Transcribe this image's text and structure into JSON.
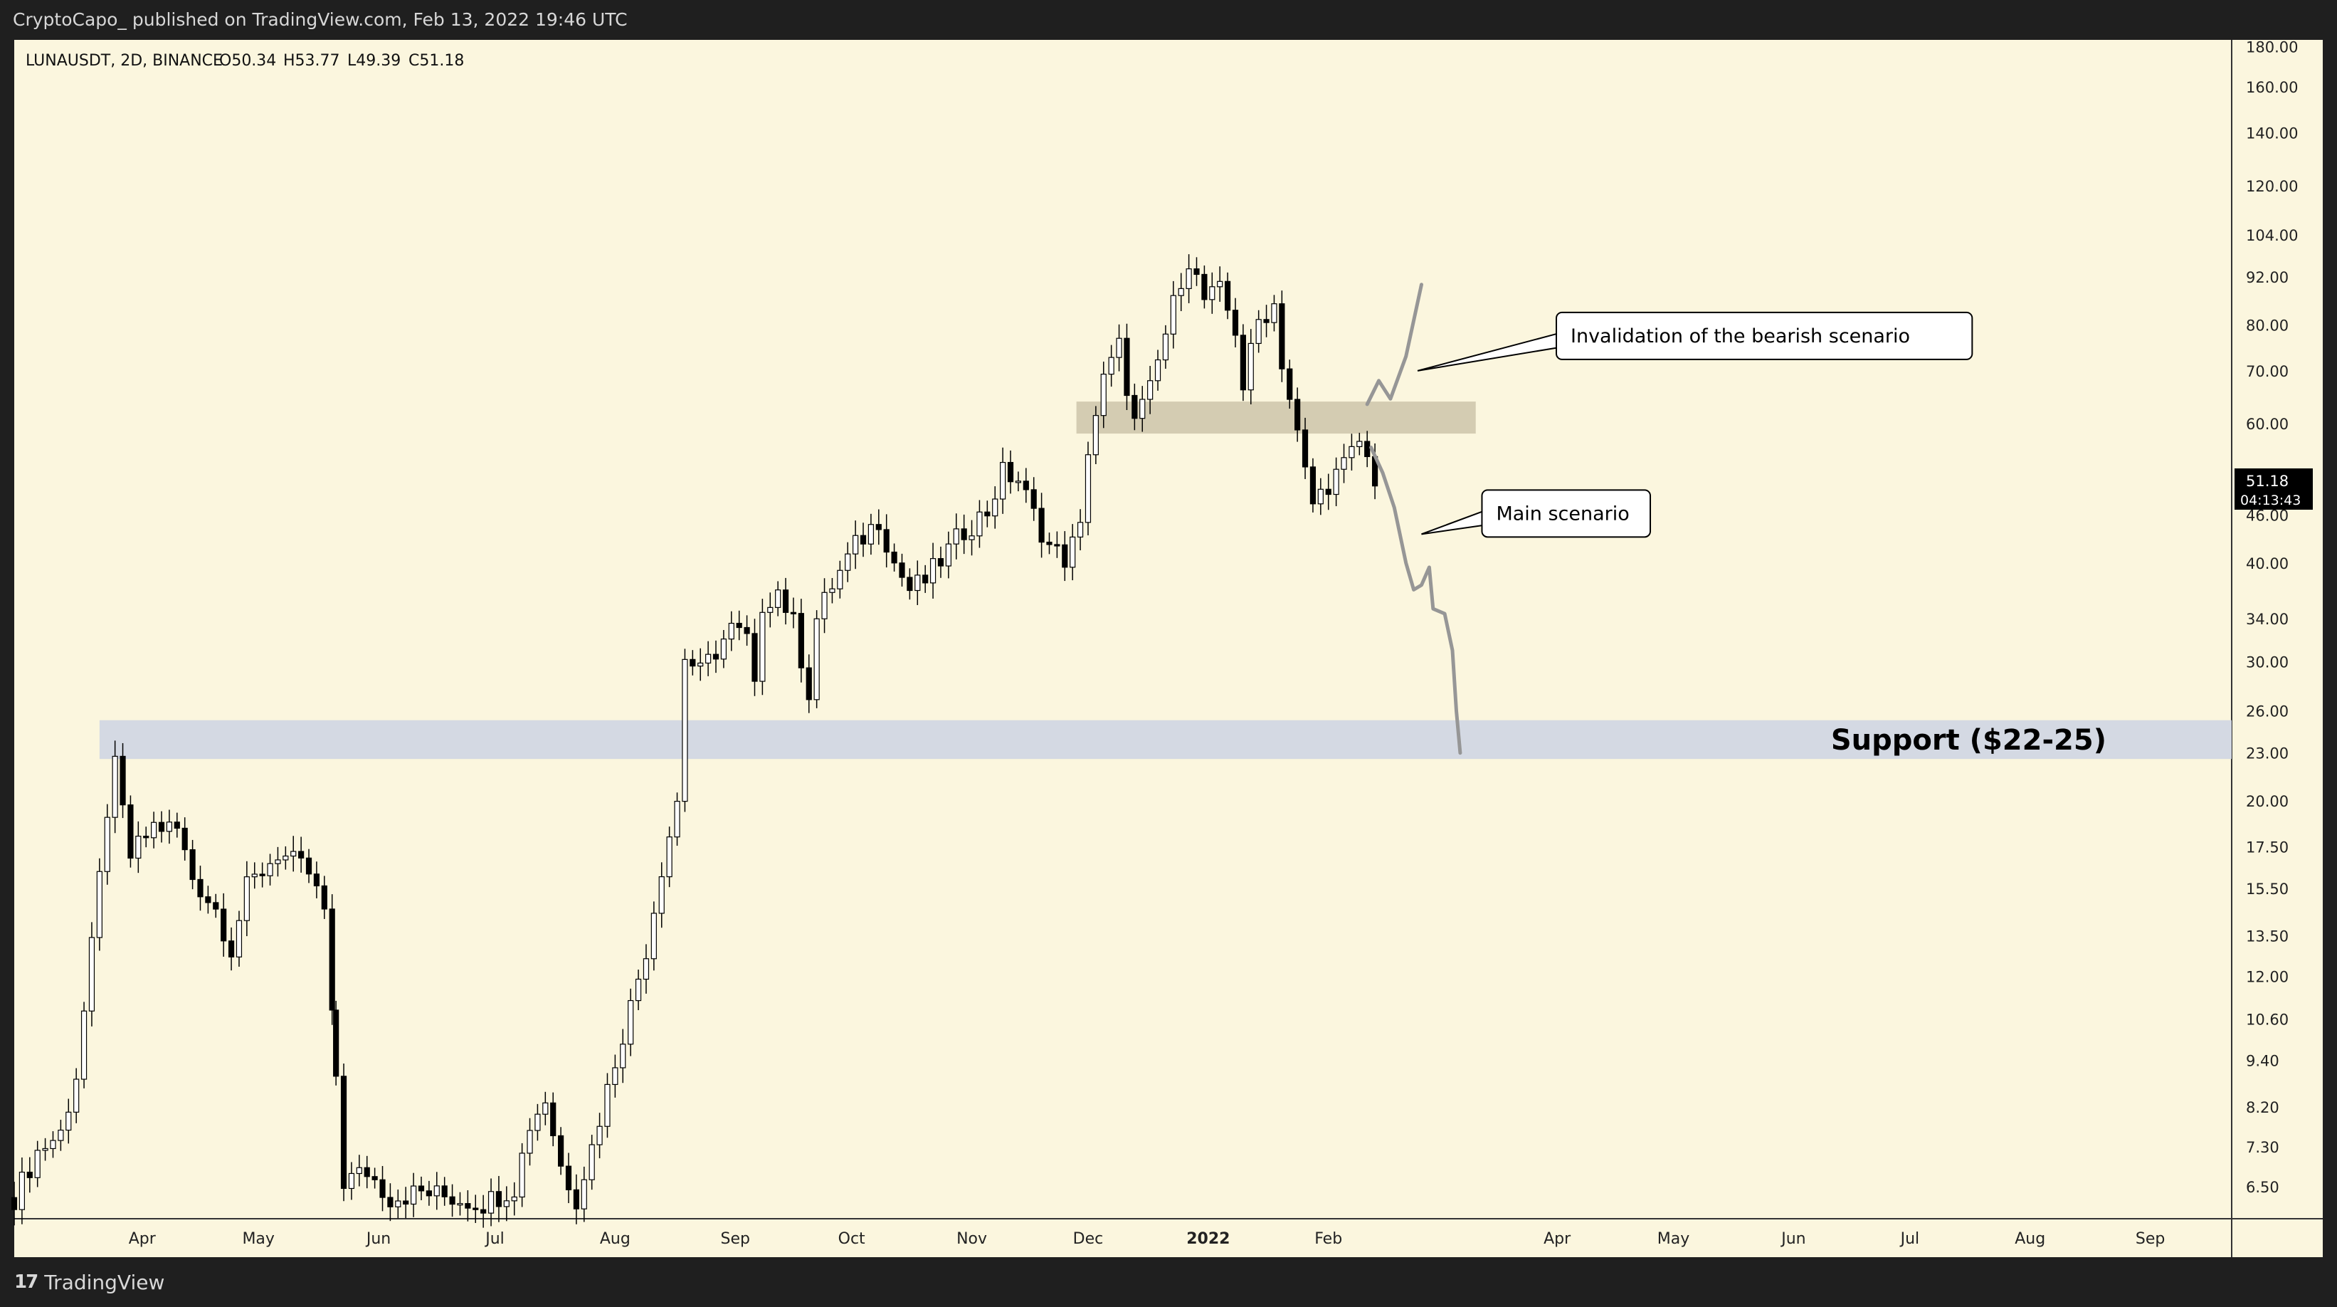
{
  "header": {
    "published_by": "CryptoCapo_ published on TradingView.com, Feb 13, 2022 19:46 UTC"
  },
  "footer": {
    "brand": "TradingView",
    "logo_icon": "tradingview-logo-icon"
  },
  "colors": {
    "chart_background": "#fbf6de",
    "frame": "#1f1f1f",
    "candle_up_fill": "#ffffff",
    "candle_down_fill": "#000000",
    "support_zone": "#cfd6e3",
    "resistance_zone": "#cdc4aa",
    "scenario_path": "#969696",
    "price_label_bg": "#000000"
  },
  "chart_data": {
    "type": "candlestick",
    "symbol_line": "LUNAUSDT, 2D, BINANCE",
    "ohlc": {
      "open": "O50.34",
      "high": "H53.77",
      "low": "L49.39",
      "close": "C51.18"
    },
    "scale": "log",
    "ylim": [
      6.2,
      182
    ],
    "y_tick_labels": [
      "180.00",
      "160.00",
      "140.00",
      "120.00",
      "104.00",
      "92.00",
      "80.00",
      "70.00",
      "60.00",
      "46.00",
      "40.00",
      "34.00",
      "30.00",
      "26.00",
      "23.00",
      "20.00",
      "17.50",
      "15.50",
      "13.50",
      "12.00",
      "10.60",
      "9.40",
      "8.20",
      "7.30",
      "6.50"
    ],
    "x_range": [
      "2021-02-27",
      "2022-09-22"
    ],
    "x_tick_labels": [
      {
        "label": "Apr",
        "date": "2021-04-01",
        "bold": false
      },
      {
        "label": "May",
        "date": "2021-05-01",
        "bold": false
      },
      {
        "label": "Jun",
        "date": "2021-06-01",
        "bold": false
      },
      {
        "label": "Jul",
        "date": "2021-07-01",
        "bold": false
      },
      {
        "label": "Aug",
        "date": "2021-08-01",
        "bold": false
      },
      {
        "label": "Sep",
        "date": "2021-09-01",
        "bold": false
      },
      {
        "label": "Oct",
        "date": "2021-10-01",
        "bold": false
      },
      {
        "label": "Nov",
        "date": "2021-11-01",
        "bold": false
      },
      {
        "label": "Dec",
        "date": "2021-12-01",
        "bold": false
      },
      {
        "label": "2022",
        "date": "2022-01-01",
        "bold": true
      },
      {
        "label": "Feb",
        "date": "2022-02-01",
        "bold": false
      },
      {
        "label": "Apr",
        "date": "2022-04-01",
        "bold": false
      },
      {
        "label": "May",
        "date": "2022-05-01",
        "bold": false
      },
      {
        "label": "Jun",
        "date": "2022-06-01",
        "bold": false
      },
      {
        "label": "Jul",
        "date": "2022-07-01",
        "bold": false
      },
      {
        "label": "Aug",
        "date": "2022-08-01",
        "bold": false
      },
      {
        "label": "Sep",
        "date": "2022-09-01",
        "bold": false
      }
    ],
    "last_price": {
      "value": "51.18",
      "countdown": "04:13:43"
    },
    "close_path": [
      [
        "2021-02-27",
        6.3
      ],
      [
        "2021-03-05",
        7.2
      ],
      [
        "2021-03-11",
        7.6
      ],
      [
        "2021-03-15",
        9.0
      ],
      [
        "2021-03-19",
        13.0
      ],
      [
        "2021-03-23",
        19.5
      ],
      [
        "2021-03-25",
        22.0
      ],
      [
        "2021-03-29",
        17.0
      ],
      [
        "2021-04-04",
        18.6
      ],
      [
        "2021-04-10",
        18.4
      ],
      [
        "2021-04-14",
        16.0
      ],
      [
        "2021-04-20",
        14.6
      ],
      [
        "2021-04-24",
        13.0
      ],
      [
        "2021-04-28",
        15.5
      ],
      [
        "2021-05-06",
        17.2
      ],
      [
        "2021-05-14",
        16.2
      ],
      [
        "2021-05-18",
        14.5
      ],
      [
        "2021-05-21",
        9.0
      ],
      [
        "2021-05-23",
        6.6
      ],
      [
        "2021-05-29",
        6.8
      ],
      [
        "2021-06-04",
        6.3
      ],
      [
        "2021-06-12",
        6.4
      ],
      [
        "2021-06-20",
        6.3
      ],
      [
        "2021-06-28",
        6.2
      ],
      [
        "2021-07-06",
        6.5
      ],
      [
        "2021-07-10",
        7.8
      ],
      [
        "2021-07-14",
        8.4
      ],
      [
        "2021-07-18",
        6.9
      ],
      [
        "2021-07-22",
        6.3
      ],
      [
        "2021-07-26",
        7.3
      ],
      [
        "2021-08-01",
        9.4
      ],
      [
        "2021-08-05",
        11.0
      ],
      [
        "2021-08-09",
        13.0
      ],
      [
        "2021-08-13",
        16.5
      ],
      [
        "2021-08-17",
        20.0
      ],
      [
        "2021-08-19",
        30.5
      ],
      [
        "2021-08-23",
        29.0
      ],
      [
        "2021-08-27",
        31.0
      ],
      [
        "2021-08-31",
        33.0
      ],
      [
        "2021-09-04",
        32.0
      ],
      [
        "2021-09-06",
        27.5
      ],
      [
        "2021-09-08",
        35.5
      ],
      [
        "2021-09-12",
        37.0
      ],
      [
        "2021-09-16",
        33.5
      ],
      [
        "2021-09-20",
        27.5
      ],
      [
        "2021-09-22",
        34.0
      ],
      [
        "2021-09-26",
        37.5
      ],
      [
        "2021-10-02",
        42.0
      ],
      [
        "2021-10-08",
        45.5
      ],
      [
        "2021-10-12",
        40.0
      ],
      [
        "2021-10-16",
        37.0
      ],
      [
        "2021-10-20",
        38.0
      ],
      [
        "2021-10-26",
        41.5
      ],
      [
        "2021-10-30",
        44.0
      ],
      [
        "2021-11-05",
        46.5
      ],
      [
        "2021-11-09",
        52.0
      ],
      [
        "2021-11-13",
        51.0
      ],
      [
        "2021-11-17",
        46.0
      ],
      [
        "2021-11-21",
        42.0
      ],
      [
        "2021-11-25",
        40.5
      ],
      [
        "2021-11-29",
        44.0
      ],
      [
        "2021-12-01",
        56.0
      ],
      [
        "2021-12-05",
        68.0
      ],
      [
        "2021-12-09",
        75.0
      ],
      [
        "2021-12-13",
        60.0
      ],
      [
        "2021-12-17",
        66.0
      ],
      [
        "2021-12-21",
        78.0
      ],
      [
        "2021-12-25",
        92.0
      ],
      [
        "2021-12-27",
        97.0
      ],
      [
        "2021-12-31",
        86.0
      ],
      [
        "2022-01-04",
        88.0
      ],
      [
        "2022-01-08",
        79.0
      ],
      [
        "2022-01-10",
        67.0
      ],
      [
        "2022-01-14",
        81.0
      ],
      [
        "2022-01-18",
        85.0
      ],
      [
        "2022-01-20",
        72.0
      ],
      [
        "2022-01-24",
        58.0
      ],
      [
        "2022-01-26",
        52.0
      ],
      [
        "2022-01-28",
        47.5
      ],
      [
        "2022-02-01",
        50.5
      ],
      [
        "2022-02-05",
        53.0
      ],
      [
        "2022-02-09",
        57.0
      ],
      [
        "2022-02-13",
        51.18
      ]
    ],
    "zones": [
      {
        "name": "support",
        "price_low": 22.6,
        "price_high": 25.3,
        "date_start": "2021-03-21",
        "date_end": "2022-09-22",
        "label": "Support ($22-25)"
      },
      {
        "name": "resistance",
        "price_low": 58.3,
        "price_high": 64.0,
        "date_start": "2021-11-28",
        "date_end": "2022-03-11"
      }
    ],
    "scenario_paths": [
      {
        "name": "invalidation",
        "points": [
          [
            "2022-02-11",
            63.5
          ],
          [
            "2022-02-14",
            68.0
          ],
          [
            "2022-02-17",
            64.5
          ],
          [
            "2022-02-21",
            73.0
          ],
          [
            "2022-02-25",
            90.0
          ]
        ]
      },
      {
        "name": "main",
        "points": [
          [
            "2022-02-12",
            56.0
          ],
          [
            "2022-02-15",
            52.0
          ],
          [
            "2022-02-18",
            47.0
          ],
          [
            "2022-02-21",
            40.0
          ],
          [
            "2022-02-23",
            37.0
          ],
          [
            "2022-02-25",
            37.5
          ],
          [
            "2022-02-27",
            39.5
          ],
          [
            "2022-02-28",
            35.0
          ],
          [
            "2022-03-03",
            34.5
          ],
          [
            "2022-03-05",
            31.0
          ],
          [
            "2022-03-06",
            26.0
          ],
          [
            "2022-03-07",
            23.0
          ]
        ]
      }
    ],
    "annotations": [
      {
        "name": "invalidation-callout",
        "text": "Invalidation of the bearish scenario",
        "anchor": [
          "2022-02-24",
          70.0
        ]
      },
      {
        "name": "main-scenario-callout",
        "text": "Main scenario",
        "anchor": [
          "2022-02-25",
          43.5
        ]
      }
    ]
  }
}
